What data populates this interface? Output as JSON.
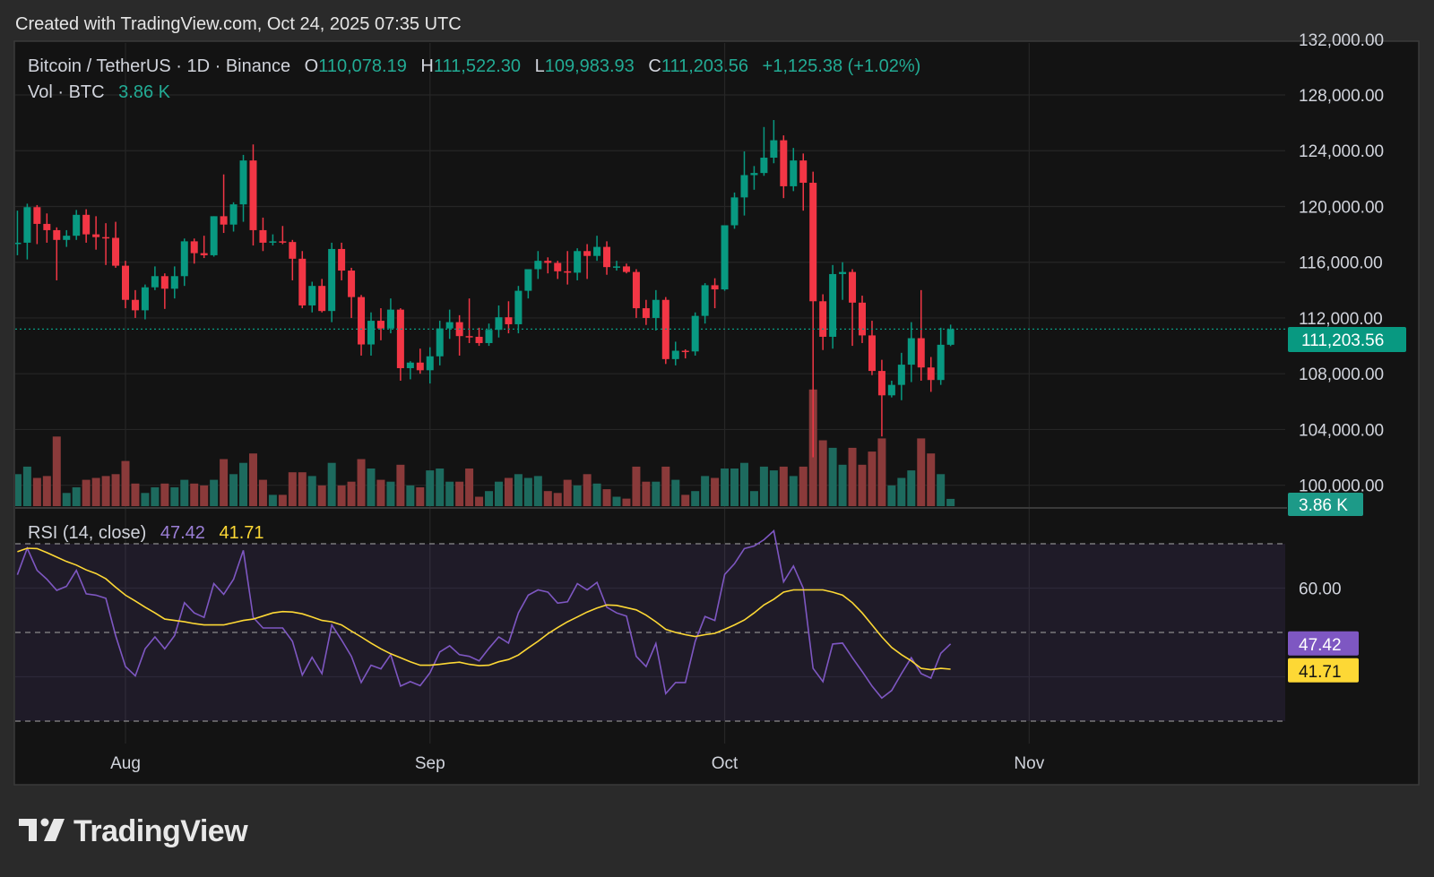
{
  "header": {
    "created": "Created with TradingView.com, Oct 24, 2025 07:35 UTC"
  },
  "legend": {
    "symbol": "Bitcoin / TetherUS · 1D · Binance",
    "o_label": "O",
    "o": "110,078.19",
    "h_label": "H",
    "h": "111,522.30",
    "l_label": "L",
    "l": "109,983.93",
    "c_label": "C",
    "c": "111,203.56",
    "change": "+1,125.38 (+1.02%)",
    "vol_label": "Vol · BTC",
    "vol": "3.86 K"
  },
  "rsi_legend": {
    "label": "RSI (14, close)",
    "rsi": "47.42",
    "ma": "41.71"
  },
  "logo": {
    "text": "TradingView"
  },
  "colors": {
    "up": "#089981",
    "down": "#f23645",
    "vol_up": "#1d6a5e",
    "vol_down": "#8a3a3a",
    "rsi": "#7e57c2",
    "rsi_ma": "#fdd835",
    "last_price": "#089981",
    "background": "#131313",
    "page": "#2a2a2a"
  },
  "chart_data": {
    "type": "candlestick",
    "interval": "1D",
    "price_axis": {
      "ticks": [
        "132,000.00",
        "128,000.00",
        "124,000.00",
        "120,000.00",
        "116,000.00",
        "112,000.00",
        "108,000.00",
        "104,000.00",
        "100,000.00"
      ],
      "tick_values": [
        132000,
        128000,
        124000,
        120000,
        116000,
        112000,
        108000,
        104000,
        100000
      ],
      "last_price_label": "111,203.56",
      "last_price": 111203.56,
      "volume_label": "3.86 K"
    },
    "time_axis": {
      "labels": [
        "Aug",
        "Sep",
        "Oct",
        "Nov"
      ],
      "label_dates": [
        "2025-08-01",
        "2025-09-01",
        "2025-10-01",
        "2025-11-01"
      ]
    },
    "rsi_axis": {
      "ticks": [
        "60.00"
      ],
      "tick_values": [
        60
      ],
      "bands": [
        70,
        50,
        30
      ],
      "labels": [
        "47.42",
        "41.71"
      ],
      "label_values": [
        47.42,
        41.71
      ]
    },
    "candle_columns": [
      "date",
      "open",
      "high",
      "low",
      "close",
      "volume_k"
    ],
    "candles": [
      [
        "2025-07-21",
        117300,
        119700,
        116500,
        117400,
        17
      ],
      [
        "2025-07-22",
        117400,
        120200,
        116200,
        119950,
        21
      ],
      [
        "2025-07-23",
        119950,
        120100,
        117300,
        118750,
        15
      ],
      [
        "2025-07-24",
        118750,
        119500,
        117400,
        118300,
        16
      ],
      [
        "2025-07-25",
        118300,
        118500,
        114700,
        117600,
        37
      ],
      [
        "2025-07-26",
        117600,
        118300,
        117100,
        117900,
        7
      ],
      [
        "2025-07-27",
        117900,
        119750,
        117600,
        119400,
        10
      ],
      [
        "2025-07-28",
        119400,
        119800,
        117400,
        118000,
        14
      ],
      [
        "2025-07-29",
        118000,
        119300,
        116900,
        117800,
        15
      ],
      [
        "2025-07-30",
        117800,
        118800,
        115800,
        117750,
        16
      ],
      [
        "2025-07-31",
        117750,
        118900,
        115600,
        115750,
        17
      ],
      [
        "2025-08-01",
        115750,
        116100,
        112700,
        113300,
        24
      ],
      [
        "2025-08-02",
        113300,
        114000,
        112000,
        112550,
        12
      ],
      [
        "2025-08-03",
        112550,
        114400,
        111900,
        114200,
        7
      ],
      [
        "2025-08-04",
        114200,
        115700,
        114000,
        115000,
        10
      ],
      [
        "2025-08-05",
        115000,
        115200,
        112650,
        114100,
        12
      ],
      [
        "2025-08-06",
        114100,
        115700,
        113400,
        115000,
        10
      ],
      [
        "2025-08-07",
        115000,
        117700,
        114300,
        117500,
        14
      ],
      [
        "2025-08-08",
        117500,
        117700,
        115900,
        116650,
        12
      ],
      [
        "2025-08-09",
        116650,
        117900,
        116300,
        116500,
        11
      ],
      [
        "2025-08-10",
        116500,
        119300,
        116400,
        119300,
        14
      ],
      [
        "2025-08-11",
        119300,
        122300,
        118100,
        118700,
        25
      ],
      [
        "2025-08-12",
        118700,
        120300,
        118200,
        120150,
        17
      ],
      [
        "2025-08-13",
        120150,
        123700,
        118900,
        123300,
        23
      ],
      [
        "2025-08-14",
        123300,
        124450,
        117200,
        118300,
        28
      ],
      [
        "2025-08-15",
        118300,
        119200,
        116800,
        117400,
        14
      ],
      [
        "2025-08-16",
        117400,
        118000,
        117200,
        117500,
        6
      ],
      [
        "2025-08-17",
        117500,
        118600,
        117300,
        117450,
        6
      ],
      [
        "2025-08-18",
        117450,
        117600,
        114700,
        116250,
        18
      ],
      [
        "2025-08-19",
        116250,
        116800,
        112700,
        112900,
        18
      ],
      [
        "2025-08-20",
        112900,
        114600,
        112400,
        114300,
        16
      ],
      [
        "2025-08-21",
        114300,
        114800,
        112400,
        112500,
        11
      ],
      [
        "2025-08-22",
        112500,
        117400,
        111700,
        116950,
        23
      ],
      [
        "2025-08-23",
        116950,
        117400,
        114700,
        115400,
        11
      ],
      [
        "2025-08-24",
        115400,
        115600,
        112000,
        113500,
        13
      ],
      [
        "2025-08-25",
        113500,
        113650,
        109300,
        110100,
        25
      ],
      [
        "2025-08-26",
        110100,
        112400,
        109300,
        111800,
        20
      ],
      [
        "2025-08-27",
        111800,
        112700,
        110400,
        111250,
        14
      ],
      [
        "2025-08-28",
        111250,
        113400,
        110900,
        112600,
        13
      ],
      [
        "2025-08-29",
        112600,
        112700,
        107500,
        108400,
        22
      ],
      [
        "2025-08-30",
        108400,
        108900,
        107600,
        108800,
        11
      ],
      [
        "2025-08-31",
        108800,
        109800,
        108000,
        108250,
        10
      ],
      [
        "2025-09-01",
        108250,
        109900,
        107300,
        109250,
        19
      ],
      [
        "2025-09-02",
        109250,
        111800,
        108600,
        111250,
        20
      ],
      [
        "2025-09-03",
        111250,
        112600,
        110500,
        111700,
        13
      ],
      [
        "2025-09-04",
        111700,
        112200,
        109300,
        110700,
        13
      ],
      [
        "2025-09-05",
        110700,
        113400,
        110200,
        110650,
        20
      ],
      [
        "2025-09-06",
        110650,
        111300,
        110000,
        110200,
        5
      ],
      [
        "2025-09-07",
        110200,
        111600,
        110000,
        111150,
        8
      ],
      [
        "2025-09-08",
        111150,
        112900,
        110600,
        112050,
        13
      ],
      [
        "2025-09-09",
        112050,
        113200,
        110900,
        111550,
        15
      ],
      [
        "2025-09-10",
        111550,
        114300,
        110900,
        113950,
        17
      ],
      [
        "2025-09-11",
        113950,
        115500,
        113400,
        115500,
        15
      ],
      [
        "2025-09-12",
        115500,
        116800,
        114800,
        116100,
        16
      ],
      [
        "2025-09-13",
        116100,
        116350,
        115200,
        115950,
        8
      ],
      [
        "2025-09-14",
        115950,
        116100,
        114800,
        115350,
        7
      ],
      [
        "2025-09-15",
        115350,
        116800,
        114400,
        115250,
        14
      ],
      [
        "2025-09-16",
        115250,
        117000,
        114700,
        116800,
        11
      ],
      [
        "2025-09-17",
        116800,
        117300,
        114800,
        116450,
        17
      ],
      [
        "2025-09-18",
        116450,
        117900,
        116100,
        117100,
        12
      ],
      [
        "2025-09-19",
        117100,
        117500,
        115100,
        115650,
        9
      ],
      [
        "2025-09-20",
        115650,
        116100,
        115400,
        115700,
        5
      ],
      [
        "2025-09-21",
        115700,
        115900,
        115200,
        115300,
        4
      ],
      [
        "2025-09-22",
        115300,
        115500,
        112000,
        112700,
        21
      ],
      [
        "2025-09-23",
        112700,
        113300,
        111500,
        112000,
        13
      ],
      [
        "2025-09-24",
        112000,
        114000,
        111100,
        113300,
        13
      ],
      [
        "2025-09-25",
        113300,
        113500,
        108700,
        109050,
        21
      ],
      [
        "2025-09-26",
        109050,
        110300,
        108600,
        109650,
        14
      ],
      [
        "2025-09-27",
        109650,
        109750,
        109100,
        109600,
        6
      ],
      [
        "2025-09-28",
        109600,
        112400,
        109300,
        112150,
        8
      ],
      [
        "2025-09-29",
        112150,
        114500,
        111600,
        114350,
        16
      ],
      [
        "2025-09-30",
        114350,
        114850,
        112700,
        114050,
        15
      ],
      [
        "2025-10-01",
        114050,
        118650,
        113950,
        118650,
        20
      ],
      [
        "2025-10-02",
        118650,
        121000,
        118400,
        120650,
        20
      ],
      [
        "2025-10-03",
        120650,
        123950,
        119350,
        122250,
        23
      ],
      [
        "2025-10-04",
        122250,
        122900,
        121200,
        122400,
        8
      ],
      [
        "2025-10-05",
        122400,
        125700,
        122200,
        123500,
        21
      ],
      [
        "2025-10-06",
        123500,
        126200,
        123100,
        124750,
        19
      ],
      [
        "2025-10-07",
        124750,
        125100,
        120600,
        121450,
        21
      ],
      [
        "2025-10-08",
        121450,
        124200,
        121100,
        123300,
        16
      ],
      [
        "2025-10-09",
        123300,
        123800,
        119700,
        121700,
        21
      ],
      [
        "2025-10-10",
        121700,
        122500,
        102000,
        113200,
        62
      ],
      [
        "2025-10-11",
        113200,
        113700,
        109700,
        110650,
        35
      ],
      [
        "2025-10-12",
        110650,
        115800,
        109800,
        115150,
        31
      ],
      [
        "2025-10-13",
        115150,
        116000,
        113300,
        115300,
        22
      ],
      [
        "2025-10-14",
        115300,
        115500,
        110000,
        113100,
        31
      ],
      [
        "2025-10-15",
        113100,
        113600,
        110200,
        110750,
        22
      ],
      [
        "2025-10-16",
        110750,
        111800,
        107900,
        108200,
        29
      ],
      [
        "2025-10-17",
        108200,
        109000,
        103500,
        106450,
        36
      ],
      [
        "2025-10-18",
        106450,
        107500,
        106300,
        107200,
        11
      ],
      [
        "2025-10-19",
        107200,
        109500,
        106100,
        108650,
        15
      ],
      [
        "2025-10-20",
        108650,
        111700,
        107400,
        110550,
        19
      ],
      [
        "2025-10-21",
        110550,
        114000,
        107500,
        108450,
        36
      ],
      [
        "2025-10-22",
        108450,
        109200,
        106700,
        107550,
        28
      ],
      [
        "2025-10-23",
        107550,
        111300,
        107200,
        110078.19,
        17
      ],
      [
        "2025-10-24",
        110078.19,
        111522.3,
        109983.93,
        111203.56,
        3.86
      ]
    ],
    "rsi": {
      "name": "RSI (14, close)",
      "values": [
        63,
        69,
        64,
        62,
        59.5,
        60.4,
        64,
        58.7,
        58.4,
        57.7,
        49.3,
        42.3,
        40.2,
        46.3,
        49,
        46.3,
        49.3,
        56.7,
        54.4,
        53.4,
        61,
        58.6,
        62,
        68.5,
        53.4,
        51,
        51,
        51,
        48,
        40.4,
        44.4,
        40.7,
        51.7,
        48.3,
        44.6,
        38.7,
        42.6,
        41.8,
        45,
        37.9,
        38.9,
        38,
        40.9,
        45.6,
        47,
        45,
        44.6,
        43.6,
        46.4,
        49,
        47.6,
        54.4,
        58.4,
        59.6,
        59.1,
        56.6,
        56.9,
        61,
        59.6,
        61.3,
        55.7,
        54.4,
        53.7,
        44.6,
        42.3,
        47.5,
        36.2,
        38.7,
        38.7,
        48,
        53.6,
        52.7,
        63.1,
        65.5,
        68.9,
        69.5,
        70.9,
        72.9,
        61.4,
        65,
        60,
        41.9,
        38.9,
        47.4,
        47.6,
        44.3,
        41.2,
        37.9,
        35.2,
        36.9,
        40.7,
        44.3,
        40.7,
        39.7,
        45.3,
        47.42
      ],
      "ma": [
        68.2,
        69,
        68.9,
        68,
        67,
        66,
        65.2,
        64.1,
        63.3,
        62.1,
        60.2,
        58.4,
        57.1,
        55.7,
        54.4,
        53,
        52.7,
        52.4,
        52,
        51.7,
        51.7,
        51.7,
        52.2,
        52.7,
        53,
        53.7,
        54.4,
        54.7,
        54.6,
        54.2,
        53.5,
        52.7,
        52.4,
        51.7,
        50.3,
        49,
        47.6,
        46.3,
        45.2,
        44.3,
        43.4,
        42.6,
        42.6,
        42.8,
        43.1,
        43.3,
        42.8,
        42.5,
        42.6,
        43.4,
        43.9,
        44.9,
        46.5,
        48,
        49.7,
        51.1,
        52.4,
        53.5,
        54.6,
        55.5,
        56.2,
        56.1,
        55.6,
        55.1,
        53.9,
        52.4,
        50.7,
        50,
        49.5,
        49.1,
        49.5,
        49.8,
        50.7,
        51.7,
        52.8,
        54.4,
        56.2,
        57.5,
        59.1,
        59.6,
        59.6,
        59.6,
        59.6,
        59.1,
        58.4,
        56.7,
        54.4,
        51.7,
        49,
        46.6,
        45,
        43.6,
        41.9,
        41.6,
        41.9,
        41.71
      ]
    }
  }
}
